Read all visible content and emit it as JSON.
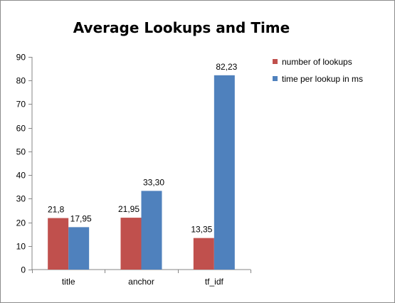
{
  "chart_data": {
    "type": "bar",
    "title": "Average Lookups and Time",
    "xlabel": "",
    "ylabel": "",
    "categories": [
      "title",
      "anchor",
      "tf_idf"
    ],
    "ylim": [
      0,
      90
    ],
    "yticks": [
      0,
      10,
      20,
      30,
      40,
      50,
      60,
      70,
      80,
      90
    ],
    "grid": false,
    "legend_position": "right",
    "series": [
      {
        "name": "number of lookups",
        "color": "#c0504d",
        "values": [
          21.8,
          21.95,
          13.35
        ],
        "labels": [
          "21,8",
          "21,95",
          "13,35"
        ]
      },
      {
        "name": "time per lookup in ms",
        "color": "#4f81bd",
        "values": [
          17.95,
          33.3,
          82.23
        ],
        "labels": [
          "17,95",
          "33,30",
          "82,23"
        ]
      }
    ]
  }
}
